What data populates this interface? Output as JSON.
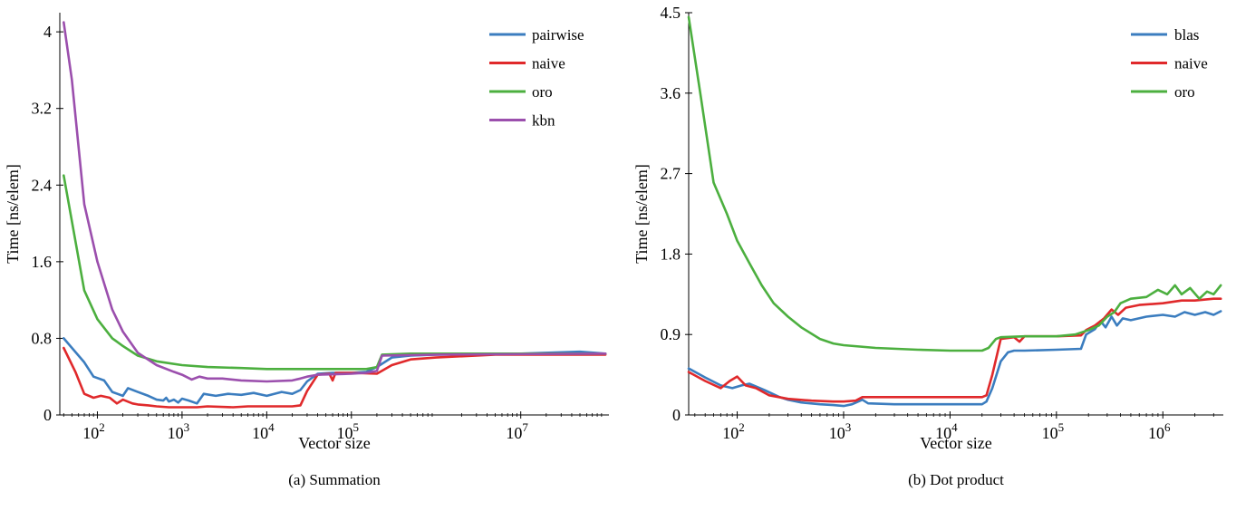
{
  "chart_data": [
    {
      "type": "line",
      "title": "",
      "caption": "(a) Summation",
      "xlabel": "Vector size",
      "ylabel": "Time [ns/elem]",
      "x_scale": "log",
      "x_ticks": [
        100,
        1000,
        10000,
        100000,
        10000000
      ],
      "x_tick_labels": [
        {
          "base": "10",
          "exp": "2"
        },
        {
          "base": "10",
          "exp": "3"
        },
        {
          "base": "10",
          "exp": "4"
        },
        {
          "base": "10",
          "exp": "5"
        },
        {
          "base": "10",
          "exp": "7"
        }
      ],
      "y_ticks": [
        0,
        0.8,
        1.6,
        2.4,
        3.2,
        4
      ],
      "y_tick_labels": [
        "0",
        "0.8",
        "1.6",
        "2.4",
        "3.2",
        "4"
      ],
      "ylim": [
        0,
        4.2
      ],
      "legend_position": "top-right",
      "series": [
        {
          "name": "pairwise",
          "color": "#3b7dbf",
          "points": [
            [
              40,
              0.8
            ],
            [
              70,
              0.55
            ],
            [
              90,
              0.4
            ],
            [
              120,
              0.36
            ],
            [
              150,
              0.24
            ],
            [
              200,
              0.2
            ],
            [
              230,
              0.28
            ],
            [
              300,
              0.24
            ],
            [
              400,
              0.2
            ],
            [
              500,
              0.16
            ],
            [
              600,
              0.15
            ],
            [
              650,
              0.18
            ],
            [
              700,
              0.14
            ],
            [
              800,
              0.16
            ],
            [
              900,
              0.13
            ],
            [
              1000,
              0.17
            ],
            [
              1200,
              0.15
            ],
            [
              1500,
              0.12
            ],
            [
              1800,
              0.22
            ],
            [
              2500,
              0.2
            ],
            [
              3500,
              0.22
            ],
            [
              5000,
              0.21
            ],
            [
              7000,
              0.23
            ],
            [
              10000,
              0.2
            ],
            [
              15000,
              0.24
            ],
            [
              20000,
              0.22
            ],
            [
              25000,
              0.26
            ],
            [
              30000,
              0.35
            ],
            [
              40000,
              0.43
            ],
            [
              60000,
              0.44
            ],
            [
              100000,
              0.44
            ],
            [
              150000,
              0.45
            ],
            [
              200000,
              0.5
            ],
            [
              300000,
              0.6
            ],
            [
              500000,
              0.62
            ],
            [
              1000000,
              0.63
            ],
            [
              10000000,
              0.64
            ],
            [
              50000000,
              0.66
            ],
            [
              100000000,
              0.64
            ]
          ]
        },
        {
          "name": "naive",
          "color": "#e0292b",
          "points": [
            [
              40,
              0.7
            ],
            [
              55,
              0.45
            ],
            [
              70,
              0.22
            ],
            [
              90,
              0.18
            ],
            [
              110,
              0.2
            ],
            [
              140,
              0.18
            ],
            [
              170,
              0.12
            ],
            [
              200,
              0.16
            ],
            [
              260,
              0.12
            ],
            [
              300,
              0.11
            ],
            [
              400,
              0.1
            ],
            [
              500,
              0.09
            ],
            [
              700,
              0.08
            ],
            [
              1000,
              0.08
            ],
            [
              1500,
              0.08
            ],
            [
              2000,
              0.09
            ],
            [
              4000,
              0.08
            ],
            [
              6000,
              0.09
            ],
            [
              10000,
              0.09
            ],
            [
              20000,
              0.09
            ],
            [
              25000,
              0.1
            ],
            [
              30000,
              0.25
            ],
            [
              40000,
              0.42
            ],
            [
              55000,
              0.43
            ],
            [
              60000,
              0.36
            ],
            [
              65000,
              0.44
            ],
            [
              100000,
              0.44
            ],
            [
              200000,
              0.43
            ],
            [
              300000,
              0.52
            ],
            [
              500000,
              0.58
            ],
            [
              1000000,
              0.6
            ],
            [
              5000000,
              0.63
            ],
            [
              100000000,
              0.63
            ]
          ]
        },
        {
          "name": "oro",
          "color": "#4caf3f",
          "points": [
            [
              40,
              2.5
            ],
            [
              70,
              1.3
            ],
            [
              100,
              1.0
            ],
            [
              150,
              0.8
            ],
            [
              200,
              0.72
            ],
            [
              300,
              0.62
            ],
            [
              500,
              0.56
            ],
            [
              1000,
              0.52
            ],
            [
              2000,
              0.5
            ],
            [
              5000,
              0.49
            ],
            [
              10000,
              0.48
            ],
            [
              50000,
              0.48
            ],
            [
              150000,
              0.48
            ],
            [
              200000,
              0.5
            ],
            [
              230000,
              0.63
            ],
            [
              500000,
              0.64
            ],
            [
              100000000,
              0.64
            ]
          ]
        },
        {
          "name": "kbn",
          "color": "#9b4fad",
          "points": [
            [
              40,
              4.1
            ],
            [
              50,
              3.5
            ],
            [
              70,
              2.2
            ],
            [
              100,
              1.6
            ],
            [
              150,
              1.1
            ],
            [
              200,
              0.87
            ],
            [
              300,
              0.65
            ],
            [
              500,
              0.52
            ],
            [
              800,
              0.45
            ],
            [
              1000,
              0.42
            ],
            [
              1300,
              0.37
            ],
            [
              1600,
              0.4
            ],
            [
              2000,
              0.38
            ],
            [
              3000,
              0.38
            ],
            [
              5000,
              0.36
            ],
            [
              10000,
              0.35
            ],
            [
              20000,
              0.36
            ],
            [
              25000,
              0.38
            ],
            [
              30000,
              0.4
            ],
            [
              40000,
              0.42
            ],
            [
              100000,
              0.43
            ],
            [
              150000,
              0.44
            ],
            [
              200000,
              0.46
            ],
            [
              230000,
              0.62
            ],
            [
              1000000,
              0.63
            ],
            [
              100000000,
              0.64
            ]
          ]
        }
      ]
    },
    {
      "type": "line",
      "title": "",
      "caption": "(b) Dot product",
      "xlabel": "Vector size",
      "ylabel": "Time [ns/elem]",
      "x_scale": "log",
      "x_ticks": [
        100,
        1000,
        10000,
        100000,
        1000000
      ],
      "x_tick_labels": [
        {
          "base": "10",
          "exp": "2"
        },
        {
          "base": "10",
          "exp": "3"
        },
        {
          "base": "10",
          "exp": "4"
        },
        {
          "base": "10",
          "exp": "5"
        },
        {
          "base": "10",
          "exp": "6"
        }
      ],
      "y_ticks": [
        0,
        0.9,
        1.8,
        2.7,
        3.6,
        4.5
      ],
      "y_tick_labels": [
        "0",
        "0.9",
        "1.8",
        "2.7",
        "3.6",
        "4.5"
      ],
      "ylim": [
        0,
        4.5
      ],
      "legend_position": "top-right",
      "series": [
        {
          "name": "blas",
          "color": "#3b7dbf",
          "points": [
            [
              35,
              0.52
            ],
            [
              50,
              0.42
            ],
            [
              70,
              0.33
            ],
            [
              90,
              0.3
            ],
            [
              110,
              0.33
            ],
            [
              130,
              0.35
            ],
            [
              180,
              0.28
            ],
            [
              250,
              0.2
            ],
            [
              300,
              0.17
            ],
            [
              400,
              0.14
            ],
            [
              600,
              0.12
            ],
            [
              800,
              0.11
            ],
            [
              1000,
              0.1
            ],
            [
              1200,
              0.12
            ],
            [
              1500,
              0.17
            ],
            [
              1700,
              0.13
            ],
            [
              3000,
              0.12
            ],
            [
              5000,
              0.12
            ],
            [
              10000,
              0.12
            ],
            [
              20000,
              0.12
            ],
            [
              22000,
              0.15
            ],
            [
              25000,
              0.3
            ],
            [
              30000,
              0.6
            ],
            [
              35000,
              0.7
            ],
            [
              40000,
              0.72
            ],
            [
              50000,
              0.72
            ],
            [
              100000,
              0.73
            ],
            [
              170000,
              0.74
            ],
            [
              190000,
              0.9
            ],
            [
              230000,
              0.96
            ],
            [
              260000,
              1.05
            ],
            [
              290000,
              0.98
            ],
            [
              330000,
              1.1
            ],
            [
              370000,
              1.0
            ],
            [
              420000,
              1.08
            ],
            [
              500000,
              1.06
            ],
            [
              700000,
              1.1
            ],
            [
              1000000,
              1.12
            ],
            [
              1300000,
              1.1
            ],
            [
              1600000,
              1.15
            ],
            [
              2000000,
              1.12
            ],
            [
              2500000,
              1.15
            ],
            [
              3000000,
              1.12
            ],
            [
              3500000,
              1.16
            ]
          ]
        },
        {
          "name": "naive",
          "color": "#e0292b",
          "points": [
            [
              35,
              0.48
            ],
            [
              50,
              0.38
            ],
            [
              70,
              0.3
            ],
            [
              85,
              0.38
            ],
            [
              100,
              0.43
            ],
            [
              120,
              0.33
            ],
            [
              150,
              0.3
            ],
            [
              200,
              0.22
            ],
            [
              300,
              0.18
            ],
            [
              500,
              0.16
            ],
            [
              800,
              0.15
            ],
            [
              1000,
              0.15
            ],
            [
              1300,
              0.16
            ],
            [
              1500,
              0.2
            ],
            [
              2000,
              0.2
            ],
            [
              5000,
              0.2
            ],
            [
              10000,
              0.2
            ],
            [
              20000,
              0.2
            ],
            [
              22000,
              0.22
            ],
            [
              25000,
              0.45
            ],
            [
              30000,
              0.85
            ],
            [
              40000,
              0.87
            ],
            [
              45000,
              0.82
            ],
            [
              50000,
              0.88
            ],
            [
              100000,
              0.88
            ],
            [
              170000,
              0.89
            ],
            [
              190000,
              0.95
            ],
            [
              230000,
              1.0
            ],
            [
              280000,
              1.08
            ],
            [
              330000,
              1.18
            ],
            [
              380000,
              1.12
            ],
            [
              450000,
              1.2
            ],
            [
              600000,
              1.23
            ],
            [
              1000000,
              1.25
            ],
            [
              1500000,
              1.28
            ],
            [
              2000000,
              1.28
            ],
            [
              3000000,
              1.3
            ],
            [
              3500000,
              1.3
            ]
          ]
        },
        {
          "name": "oro",
          "color": "#4caf3f",
          "points": [
            [
              35,
              4.45
            ],
            [
              45,
              3.6
            ],
            [
              60,
              2.6
            ],
            [
              80,
              2.25
            ],
            [
              100,
              1.95
            ],
            [
              130,
              1.7
            ],
            [
              170,
              1.45
            ],
            [
              220,
              1.25
            ],
            [
              300,
              1.1
            ],
            [
              400,
              0.98
            ],
            [
              600,
              0.85
            ],
            [
              800,
              0.8
            ],
            [
              1000,
              0.78
            ],
            [
              2000,
              0.75
            ],
            [
              5000,
              0.73
            ],
            [
              10000,
              0.72
            ],
            [
              20000,
              0.72
            ],
            [
              23000,
              0.75
            ],
            [
              27000,
              0.85
            ],
            [
              30000,
              0.87
            ],
            [
              50000,
              0.88
            ],
            [
              100000,
              0.88
            ],
            [
              150000,
              0.9
            ],
            [
              200000,
              0.95
            ],
            [
              250000,
              1.0
            ],
            [
              300000,
              1.1
            ],
            [
              350000,
              1.15
            ],
            [
              400000,
              1.25
            ],
            [
              500000,
              1.3
            ],
            [
              700000,
              1.32
            ],
            [
              900000,
              1.4
            ],
            [
              1100000,
              1.35
            ],
            [
              1300000,
              1.45
            ],
            [
              1500000,
              1.35
            ],
            [
              1800000,
              1.42
            ],
            [
              2200000,
              1.3
            ],
            [
              2600000,
              1.38
            ],
            [
              3000000,
              1.35
            ],
            [
              3500000,
              1.45
            ]
          ]
        }
      ]
    }
  ]
}
